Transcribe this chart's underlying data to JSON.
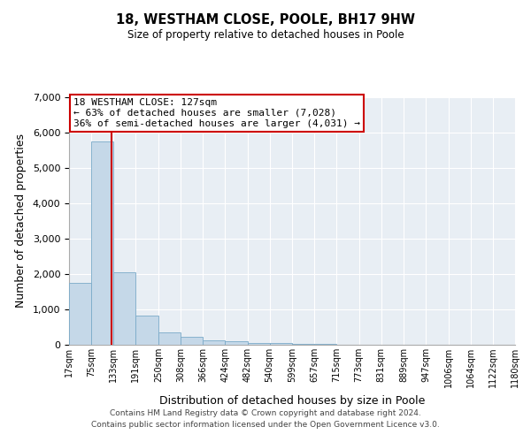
{
  "title": "18, WESTHAM CLOSE, POOLE, BH17 9HW",
  "subtitle": "Size of property relative to detached houses in Poole",
  "xlabel": "Distribution of detached houses by size in Poole",
  "ylabel": "Number of detached properties",
  "bar_color": "#c5d8e8",
  "bar_edge_color": "#7aaac8",
  "plot_bg_color": "#e8eef4",
  "background_color": "#ffffff",
  "grid_color": "#ffffff",
  "vline_color": "#cc0000",
  "vline_x": 127,
  "bin_edges": [
    17,
    75,
    133,
    191,
    250,
    308,
    366,
    424,
    482,
    540,
    599,
    657,
    715,
    773,
    831,
    889,
    947,
    1006,
    1064,
    1122,
    1180
  ],
  "bar_heights": [
    1750,
    5750,
    2050,
    820,
    360,
    225,
    130,
    90,
    55,
    40,
    30,
    20,
    0,
    0,
    0,
    0,
    0,
    0,
    0,
    0
  ],
  "ylim": [
    0,
    7000
  ],
  "yticks": [
    0,
    1000,
    2000,
    3000,
    4000,
    5000,
    6000,
    7000
  ],
  "xtick_labels": [
    "17sqm",
    "75sqm",
    "133sqm",
    "191sqm",
    "250sqm",
    "308sqm",
    "366sqm",
    "424sqm",
    "482sqm",
    "540sqm",
    "599sqm",
    "657sqm",
    "715sqm",
    "773sqm",
    "831sqm",
    "889sqm",
    "947sqm",
    "1006sqm",
    "1064sqm",
    "1122sqm",
    "1180sqm"
  ],
  "annotation_title": "18 WESTHAM CLOSE: 127sqm",
  "annotation_line1": "← 63% of detached houses are smaller (7,028)",
  "annotation_line2": "36% of semi-detached houses are larger (4,031) →",
  "annotation_box_color": "#ffffff",
  "annotation_box_edge": "#cc0000",
  "footer_line1": "Contains HM Land Registry data © Crown copyright and database right 2024.",
  "footer_line2": "Contains public sector information licensed under the Open Government Licence v3.0."
}
